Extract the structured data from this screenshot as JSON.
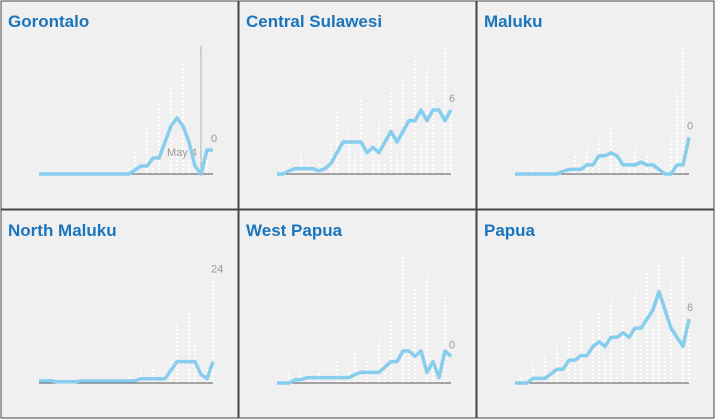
{
  "chart_data": [
    {
      "type": "line",
      "title": "Gorontalo",
      "color": "#86cdee",
      "ylim": [
        0,
        16
      ],
      "categories": [
        null,
        null,
        null,
        null,
        null,
        null,
        null,
        null,
        null,
        null,
        null,
        null,
        null,
        null,
        null,
        null,
        null,
        null,
        null,
        null,
        null,
        null,
        null,
        null,
        null,
        null,
        null,
        "May 4",
        null,
        null
      ],
      "values": [
        0,
        0,
        0,
        0,
        0,
        0,
        0,
        0,
        0,
        0,
        0,
        0,
        0,
        0,
        0,
        0,
        0.5,
        1,
        1,
        2,
        2,
        4,
        6,
        7,
        6,
        4,
        1,
        0,
        3,
        3
      ],
      "daily": [
        0,
        0,
        0,
        0,
        0,
        0,
        0,
        0,
        0,
        0,
        0,
        0,
        0,
        0,
        0,
        1,
        3,
        0,
        6,
        1,
        9,
        0,
        11,
        3,
        14,
        2,
        0,
        15,
        2,
        0
      ]
    },
    {
      "type": "line",
      "title": "Central Sulawesi",
      "color": "#86cdee",
      "ylim": [
        0,
        12
      ],
      "values": [
        0,
        0,
        0.3,
        0.5,
        0.5,
        0.5,
        0.5,
        0.3,
        0.5,
        1,
        2,
        3,
        3,
        3,
        3,
        2,
        2.5,
        2,
        3,
        4,
        3,
        4,
        5,
        5,
        6,
        5,
        6,
        6,
        5,
        6
      ],
      "daily": [
        0,
        0,
        1,
        0,
        2,
        1,
        0,
        1,
        0,
        3,
        6,
        0,
        4,
        2,
        7,
        0,
        3,
        5,
        1,
        8,
        2,
        9,
        0,
        11,
        3,
        10,
        7,
        0,
        12,
        6
      ]
    },
    {
      "type": "line",
      "title": "Maluku",
      "color": "#86cdee",
      "ylim": [
        0,
        14
      ],
      "values": [
        0,
        0,
        0,
        0,
        0,
        0,
        0,
        0,
        0.3,
        0.5,
        0.5,
        0.5,
        1,
        1,
        2,
        2,
        2.3,
        2,
        1,
        1,
        1,
        1.3,
        1,
        1,
        0.5,
        0,
        0,
        1,
        1,
        4
      ],
      "daily": [
        0,
        0,
        0,
        1,
        0,
        0,
        0,
        0,
        1,
        0,
        2,
        0,
        3,
        1,
        4,
        0,
        5,
        2,
        0,
        1,
        3,
        0,
        2,
        0,
        1,
        0,
        4,
        9,
        14,
        0
      ]
    },
    {
      "type": "line",
      "title": "North Maluku",
      "color": "#86cdee",
      "ylim": [
        0,
        30
      ],
      "values": [
        0.5,
        0.5,
        0.5,
        0.3,
        0.3,
        0.3,
        0.3,
        0.5,
        0.5,
        0.5,
        0.5,
        0.5,
        0.5,
        0.5,
        0.5,
        0.5,
        0.5,
        1,
        1,
        1,
        1,
        1,
        3,
        5,
        5,
        5,
        5,
        2,
        1,
        5
      ],
      "daily": [
        0,
        0,
        1,
        0,
        0,
        1,
        0,
        0,
        0,
        1,
        0,
        0,
        1,
        0,
        0,
        2,
        0,
        3,
        0,
        4,
        0,
        2,
        6,
        14,
        0,
        17,
        9,
        0,
        3,
        24
      ]
    },
    {
      "type": "line",
      "title": "West Papua",
      "color": "#86cdee",
      "ylim": [
        0,
        12
      ],
      "values": [
        0,
        0,
        0,
        0.3,
        0.3,
        0.5,
        0.5,
        0.5,
        0.5,
        0.5,
        0.5,
        0.5,
        0.5,
        0.8,
        1,
        1,
        1,
        1,
        1.5,
        2,
        2,
        3,
        3,
        2.5,
        3,
        1,
        2,
        0.5,
        3,
        2.5
      ],
      "daily": [
        0,
        0,
        1,
        0,
        1,
        0,
        0,
        1,
        0,
        0,
        2,
        0,
        1,
        3,
        0,
        2,
        0,
        4,
        1,
        6,
        0,
        12,
        3,
        9,
        0,
        10,
        2,
        0,
        8,
        0
      ]
    },
    {
      "type": "line",
      "title": "Papua",
      "color": "#86cdee",
      "ylim": [
        0,
        14
      ],
      "values": [
        0,
        0,
        0,
        0.5,
        0.5,
        0.5,
        1,
        1.5,
        1.5,
        2.5,
        2.5,
        3,
        3,
        4,
        4.5,
        4,
        5,
        5,
        5.5,
        5,
        6,
        6,
        7,
        8,
        10,
        8,
        6,
        5,
        4,
        7
      ],
      "daily": [
        0,
        1,
        0,
        2,
        0,
        3,
        1,
        4,
        0,
        5,
        2,
        7,
        0,
        6,
        8,
        3,
        9,
        1,
        7,
        0,
        10,
        4,
        12,
        6,
        13,
        3,
        11,
        0,
        14,
        6
      ]
    }
  ]
}
